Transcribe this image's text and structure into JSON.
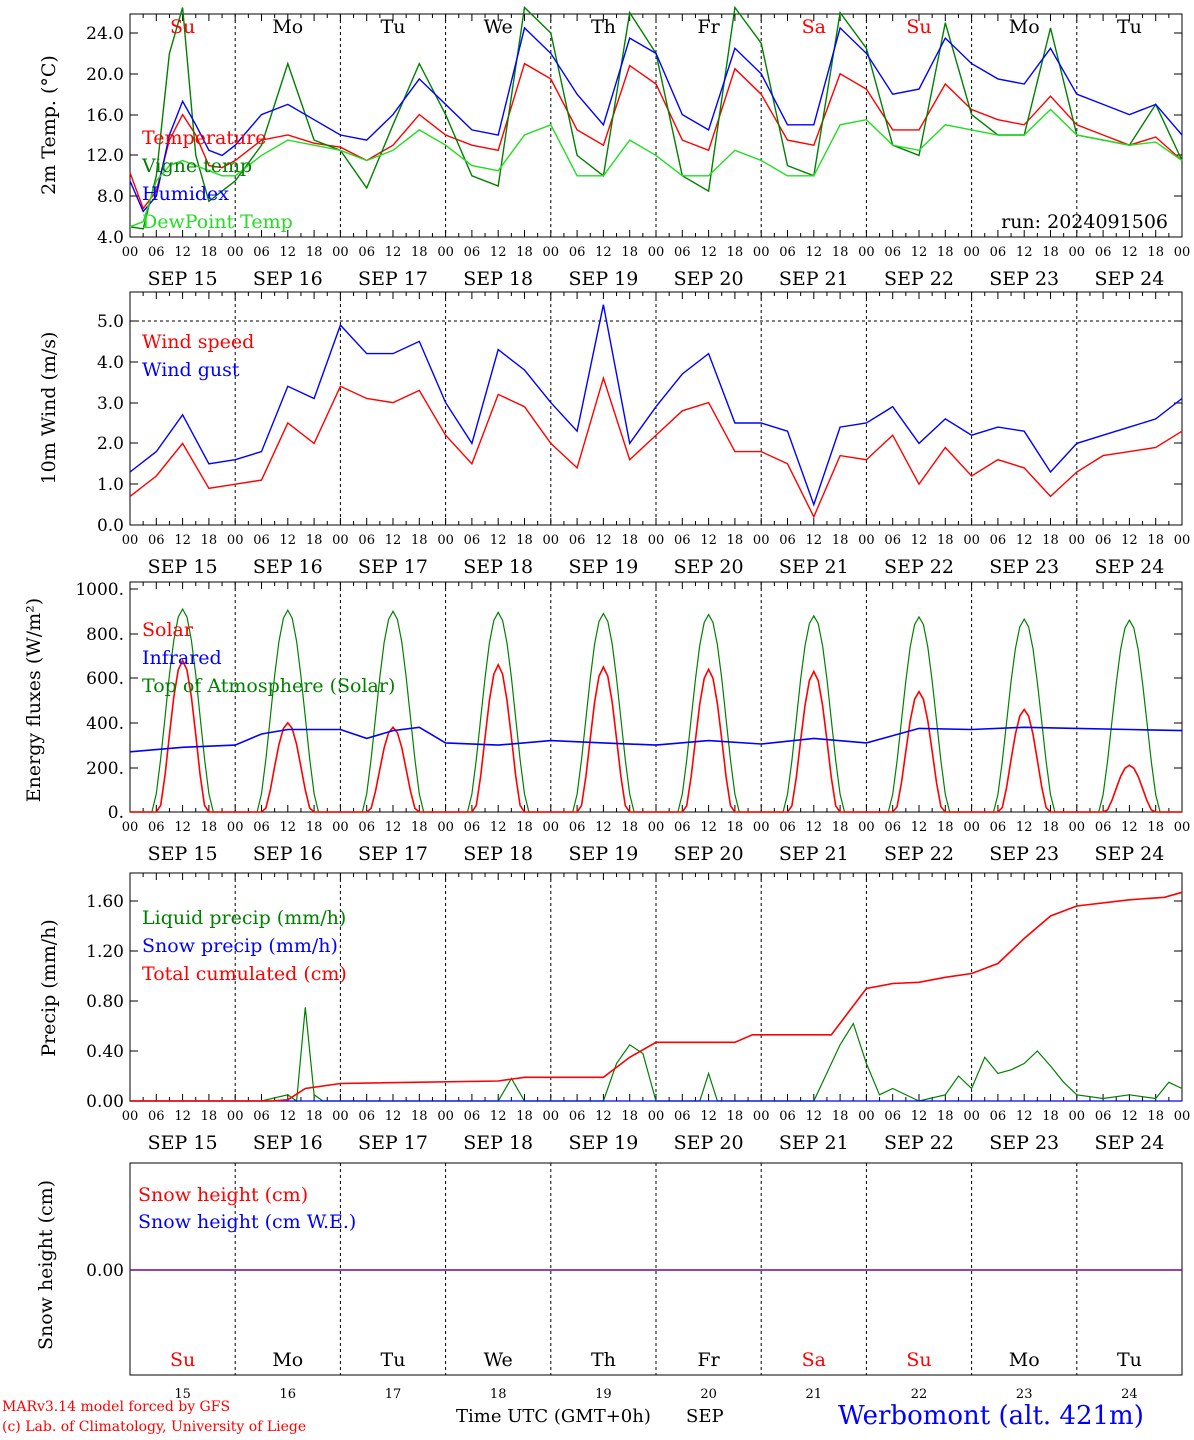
{
  "footer": {
    "model_line": "MARv3.14 model forced by GFS",
    "copyright_line": "(c) Lab. of Climatology, University of Liege",
    "time_label": "Time UTC (GMT+0h)",
    "month_label": "SEP",
    "station": "Werbomont (alt. 421m)"
  },
  "day_names": [
    "Su",
    "Mo",
    "Tu",
    "We",
    "Th",
    "Fr",
    "Sa",
    "Su",
    "Mo",
    "Tu"
  ],
  "weekend_flags": [
    true,
    false,
    false,
    false,
    false,
    false,
    true,
    true,
    false,
    false
  ],
  "day_dates": [
    "SEP 15",
    "SEP 16",
    "SEP 17",
    "SEP 18",
    "SEP 19",
    "SEP 20",
    "SEP 21",
    "SEP 22",
    "SEP 23",
    "SEP 24"
  ],
  "day_numbers": [
    "15",
    "16",
    "17",
    "18",
    "19",
    "20",
    "21",
    "22",
    "23",
    "24"
  ],
  "hour_ticks": [
    "00",
    "06",
    "12",
    "18"
  ],
  "colors": {
    "red": "#ff0000",
    "green": "#008000",
    "lightgreen": "#22dd22",
    "blue": "#0000ff",
    "purple": "#800080"
  },
  "chart_data": [
    {
      "type": "line",
      "ylabel": "2m Temp. (°C)",
      "ylim": [
        4,
        26
      ],
      "yticks": [
        "4.0",
        "8.0",
        "12.0",
        "16.0",
        "20.0",
        "24.0"
      ],
      "annotation": "run: 2024091506",
      "x_unit": "hours since 2024-09-15 00 UTC",
      "series": [
        {
          "name": "Temperature",
          "color": "red",
          "x": [
            0,
            3,
            6,
            9,
            12,
            15,
            18,
            21,
            24,
            30,
            36,
            42,
            48,
            54,
            60,
            66,
            72,
            78,
            84,
            90,
            96,
            102,
            108,
            114,
            120,
            126,
            132,
            138,
            144,
            150,
            156,
            162,
            168,
            174,
            180,
            186,
            192,
            198,
            204,
            210,
            216,
            222,
            228,
            234,
            240
          ],
          "y": [
            10.3,
            6.8,
            8.5,
            13.5,
            16.0,
            14.0,
            11.0,
            10.8,
            11.5,
            13.5,
            14.0,
            13.2,
            12.8,
            11.5,
            13.0,
            16.0,
            14.0,
            13.0,
            12.5,
            21.0,
            19.5,
            14.5,
            13.0,
            20.8,
            19.0,
            13.5,
            12.5,
            20.5,
            18.0,
            13.5,
            13.0,
            20.0,
            18.5,
            14.5,
            14.5,
            19.0,
            16.5,
            15.5,
            15.0,
            17.8,
            15.0,
            14.0,
            13.0,
            13.8,
            11.5
          ]
        },
        {
          "name": "Vigne temp",
          "color": "green",
          "x": [
            0,
            3,
            6,
            9,
            12,
            15,
            18,
            21,
            24,
            30,
            36,
            42,
            48,
            54,
            60,
            66,
            72,
            78,
            84,
            90,
            96,
            102,
            108,
            114,
            120,
            126,
            132,
            138,
            144,
            150,
            156,
            162,
            168,
            174,
            180,
            186,
            192,
            198,
            204,
            210,
            216,
            222,
            228,
            234,
            240
          ],
          "y": [
            5.0,
            4.8,
            10.0,
            22.0,
            26.5,
            12.0,
            7.5,
            8.5,
            9.5,
            13.0,
            21.0,
            13.5,
            12.5,
            8.8,
            15.0,
            21.0,
            16.0,
            10.0,
            9.0,
            26.5,
            24.0,
            12.0,
            10.0,
            26.0,
            22.0,
            10.0,
            8.5,
            26.5,
            23.0,
            11.0,
            10.0,
            26.0,
            22.5,
            13.0,
            12.0,
            25.0,
            16.0,
            14.0,
            14.0,
            24.5,
            14.0,
            13.5,
            13.0,
            17.0,
            11.5
          ]
        },
        {
          "name": "Humidex",
          "color": "blue",
          "x": [
            0,
            3,
            6,
            9,
            12,
            15,
            18,
            21,
            24,
            30,
            36,
            42,
            48,
            54,
            60,
            66,
            72,
            78,
            84,
            90,
            96,
            102,
            108,
            114,
            120,
            126,
            132,
            138,
            144,
            150,
            156,
            162,
            168,
            174,
            180,
            186,
            192,
            198,
            204,
            210,
            216,
            222,
            228,
            234,
            240
          ],
          "y": [
            9.5,
            6.5,
            8.0,
            14.0,
            17.3,
            15.0,
            12.5,
            12.0,
            13.0,
            16.0,
            17.0,
            15.5,
            14.0,
            13.5,
            16.0,
            19.5,
            17.0,
            14.5,
            14.0,
            24.5,
            22.0,
            18.0,
            15.0,
            23.5,
            22.0,
            16.0,
            14.5,
            22.5,
            20.0,
            15.0,
            15.0,
            24.5,
            22.0,
            18.0,
            18.5,
            23.5,
            21.0,
            19.5,
            19.0,
            22.5,
            18.0,
            17.0,
            16.0,
            17.0,
            14.0
          ]
        },
        {
          "name": "DewPoint Temp",
          "color": "lightgreen",
          "x": [
            0,
            3,
            6,
            9,
            12,
            15,
            18,
            21,
            24,
            30,
            36,
            42,
            48,
            54,
            60,
            66,
            72,
            78,
            84,
            90,
            96,
            102,
            108,
            114,
            120,
            126,
            132,
            138,
            144,
            150,
            156,
            162,
            168,
            174,
            180,
            186,
            192,
            198,
            204,
            210,
            216,
            222,
            228,
            234,
            240
          ],
          "y": [
            5.0,
            5.5,
            9.5,
            11.0,
            11.5,
            11.0,
            10.5,
            10.0,
            10.0,
            12.0,
            13.5,
            13.0,
            12.5,
            11.5,
            12.5,
            14.5,
            13.0,
            11.0,
            10.5,
            14.0,
            15.0,
            10.0,
            10.0,
            13.5,
            12.0,
            10.0,
            10.0,
            12.5,
            11.5,
            10.0,
            10.0,
            15.0,
            15.5,
            13.0,
            12.5,
            15.0,
            14.5,
            14.0,
            14.0,
            16.5,
            14.0,
            13.5,
            13.0,
            13.3,
            11.5
          ]
        }
      ]
    },
    {
      "type": "line",
      "ylabel": "10m Wind (m/s)",
      "ylim": [
        0,
        5.5
      ],
      "yticks": [
        "0.0",
        "1.0",
        "2.0",
        "3.0",
        "4.0",
        "5.0"
      ],
      "x_unit": "hours since 2024-09-15 00 UTC",
      "series": [
        {
          "name": "Wind speed",
          "color": "red",
          "x": [
            0,
            6,
            12,
            18,
            24,
            30,
            36,
            42,
            48,
            54,
            60,
            66,
            72,
            78,
            84,
            90,
            96,
            102,
            108,
            114,
            120,
            126,
            132,
            138,
            144,
            150,
            156,
            162,
            168,
            174,
            180,
            186,
            192,
            198,
            204,
            210,
            216,
            222,
            228,
            234,
            240
          ],
          "y": [
            0.7,
            1.2,
            2.0,
            0.9,
            1.0,
            1.1,
            2.5,
            2.0,
            3.4,
            3.1,
            3.0,
            3.3,
            2.2,
            1.5,
            3.2,
            2.9,
            2.0,
            1.4,
            3.6,
            1.6,
            2.2,
            2.8,
            3.0,
            1.8,
            1.8,
            1.5,
            0.2,
            1.7,
            1.6,
            2.2,
            1.0,
            1.9,
            1.2,
            1.6,
            1.4,
            0.7,
            1.3,
            1.7,
            1.8,
            1.9,
            2.3
          ]
        },
        {
          "name": "Wind gust",
          "color": "blue",
          "x": [
            0,
            6,
            12,
            18,
            24,
            30,
            36,
            42,
            48,
            54,
            60,
            66,
            72,
            78,
            84,
            90,
            96,
            102,
            108,
            114,
            120,
            126,
            132,
            138,
            144,
            150,
            156,
            162,
            168,
            174,
            180,
            186,
            192,
            198,
            204,
            210,
            216,
            222,
            228,
            234,
            240
          ],
          "y": [
            1.3,
            1.8,
            2.7,
            1.5,
            1.6,
            1.8,
            3.4,
            3.1,
            4.9,
            4.2,
            4.2,
            4.5,
            3.0,
            2.0,
            4.3,
            3.8,
            3.0,
            2.3,
            5.4,
            2.0,
            2.9,
            3.7,
            4.2,
            2.5,
            2.5,
            2.3,
            0.5,
            2.4,
            2.5,
            2.9,
            2.0,
            2.6,
            2.2,
            2.4,
            2.3,
            1.3,
            2.0,
            2.2,
            2.4,
            2.6,
            3.1
          ]
        }
      ]
    },
    {
      "type": "line",
      "ylabel": "Energy fluxes (W/m²)",
      "ylim": [
        0,
        1000
      ],
      "yticks": [
        "0.",
        "200.",
        "400.",
        "600.",
        "800.",
        "1000."
      ],
      "x_unit": "hours since 2024-09-15 00 UTC",
      "diurnal": {
        "toa_peaks": [
          910,
          905,
          900,
          895,
          890,
          885,
          880,
          875,
          865,
          860
        ],
        "solar_peaks": [
          680,
          400,
          380,
          660,
          650,
          640,
          630,
          540,
          460,
          210
        ]
      },
      "series": [
        {
          "name": "Solar",
          "color": "red"
        },
        {
          "name": "Infrared",
          "color": "blue",
          "x": [
            0,
            12,
            24,
            30,
            36,
            48,
            54,
            60,
            66,
            72,
            84,
            96,
            108,
            120,
            132,
            144,
            156,
            168,
            180,
            192,
            204,
            216,
            228,
            240
          ],
          "y": [
            270,
            290,
            300,
            350,
            370,
            370,
            330,
            365,
            380,
            310,
            300,
            320,
            310,
            300,
            320,
            305,
            330,
            310,
            375,
            370,
            380,
            375,
            370,
            365
          ]
        },
        {
          "name": "Top of Atmosphere (Solar)",
          "color": "green"
        }
      ]
    },
    {
      "type": "line",
      "ylabel": "Precip (mm/h)",
      "ylim": [
        0,
        1.8
      ],
      "yticks": [
        "0.00",
        "0.40",
        "0.80",
        "1.20",
        "1.60"
      ],
      "x_unit": "hours since 2024-09-15 00 UTC",
      "series": [
        {
          "name": "Liquid precip (mm/h)",
          "color": "green",
          "x": [
            0,
            30,
            36,
            38,
            40,
            42,
            44,
            48,
            84,
            87,
            90,
            108,
            111,
            114,
            117,
            120,
            130,
            132,
            134,
            150,
            156,
            162,
            165,
            168,
            171,
            174,
            180,
            186,
            189,
            192,
            195,
            198,
            201,
            204,
            207,
            210,
            213,
            216,
            222,
            228,
            234,
            237,
            240
          ],
          "y": [
            0,
            0,
            0.05,
            0,
            0.75,
            0.05,
            0,
            0,
            0,
            0.18,
            0,
            0,
            0.3,
            0.45,
            0.38,
            0,
            0,
            0.22,
            0,
            0,
            0,
            0.45,
            0.62,
            0.3,
            0.05,
            0.1,
            0,
            0.05,
            0.2,
            0.1,
            0.35,
            0.22,
            0.25,
            0.3,
            0.4,
            0.28,
            0.15,
            0.05,
            0.02,
            0.05,
            0.02,
            0.15,
            0.1
          ]
        },
        {
          "name": "Snow precip (mm/h)",
          "color": "blue",
          "x": [
            0,
            240
          ],
          "y": [
            0,
            0
          ]
        },
        {
          "name": "Total cumulated (cm)",
          "color": "red",
          "x": [
            0,
            32,
            36,
            40,
            48,
            84,
            90,
            108,
            114,
            120,
            138,
            142,
            160,
            168,
            174,
            180,
            186,
            192,
            198,
            204,
            210,
            216,
            228,
            236,
            240
          ],
          "y": [
            0,
            0,
            0.01,
            0.1,
            0.14,
            0.16,
            0.19,
            0.19,
            0.35,
            0.47,
            0.47,
            0.53,
            0.53,
            0.9,
            0.94,
            0.95,
            0.99,
            1.02,
            1.1,
            1.3,
            1.48,
            1.56,
            1.61,
            1.63,
            1.67
          ]
        }
      ]
    },
    {
      "type": "line",
      "ylabel": "Snow height (cm)",
      "yticks": [
        "0.00"
      ],
      "x_unit": "hours since 2024-09-15 00 UTC",
      "series": [
        {
          "name": "Snow height (cm)",
          "color": "red",
          "x": [
            0,
            240
          ],
          "y": [
            0,
            0
          ]
        },
        {
          "name": "Snow height (cm W.E.)",
          "color": "blue",
          "x": [
            0,
            240
          ],
          "y": [
            0,
            0
          ]
        }
      ]
    }
  ]
}
